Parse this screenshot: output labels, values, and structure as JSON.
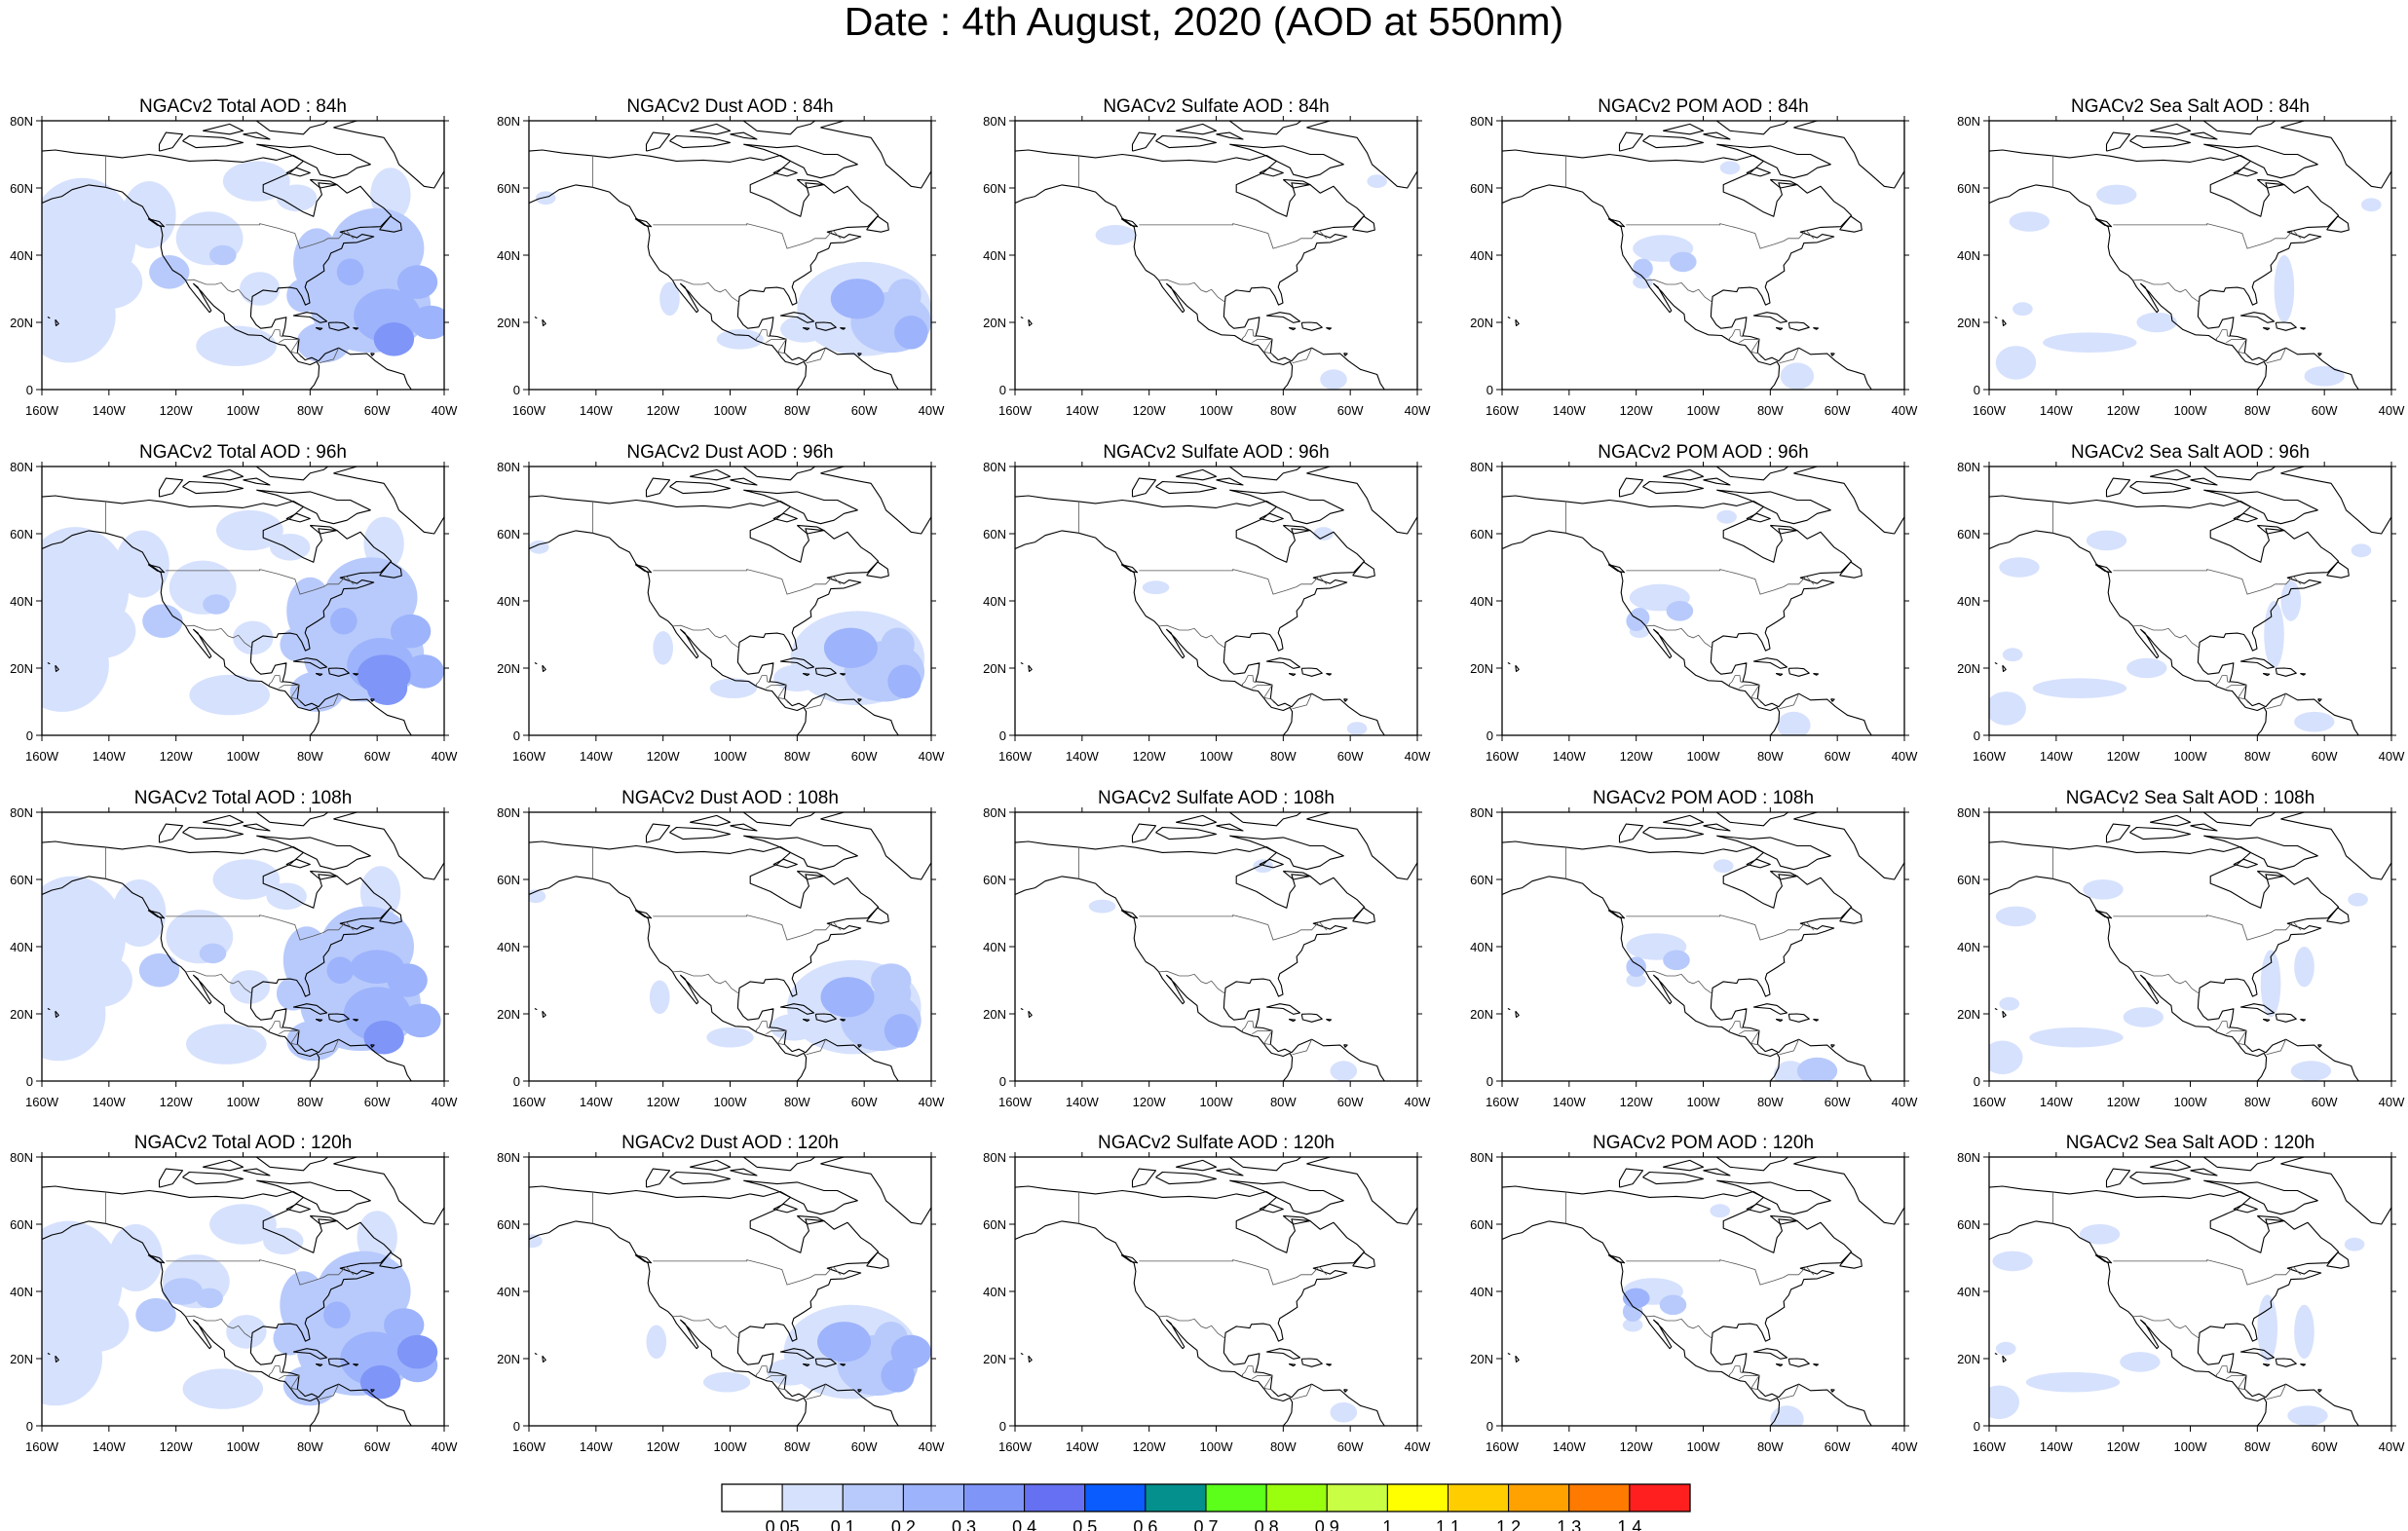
{
  "title": "Date : 4th August, 2020 (AOD at 550nm)",
  "panel_titles": [
    [
      "NGACv2 Total AOD : 84h",
      "NGACv2 Dust AOD : 84h",
      "NGACv2 Sulfate AOD : 84h",
      "NGACv2 POM AOD : 84h",
      "NGACv2 Sea Salt AOD : 84h"
    ],
    [
      "NGACv2 Total AOD : 96h",
      "NGACv2 Dust AOD : 96h",
      "NGACv2 Sulfate AOD : 96h",
      "NGACv2 POM AOD : 96h",
      "NGACv2 Sea Salt AOD : 96h"
    ],
    [
      "NGACv2 Total AOD : 108h",
      "NGACv2 Dust AOD : 108h",
      "NGACv2 Sulfate AOD : 108h",
      "NGACv2 POM AOD : 108h",
      "NGACv2 Sea Salt AOD : 108h"
    ],
    [
      "NGACv2 Total AOD : 120h",
      "NGACv2 Dust AOD : 120h",
      "NGACv2 Sulfate AOD : 120h",
      "NGACv2 POM AOD : 120h",
      "NGACv2 Sea Salt  AOD : 120h"
    ]
  ],
  "axes": {
    "lon_ticks": [
      "160W",
      "140W",
      "120W",
      "100W",
      "80W",
      "60W",
      "40W"
    ],
    "lat_ticks": [
      "80N",
      "60N",
      "40N",
      "20N",
      "0"
    ],
    "lon_range": [
      -160,
      -40
    ],
    "lat_range": [
      0,
      80
    ]
  },
  "colorbar": {
    "labels": [
      "0.05",
      "0.1",
      "0.2",
      "0.3",
      "0.4",
      "0.5",
      "0.6",
      "0.7",
      "0.8",
      "0.9",
      "1",
      "1.1",
      "1.2",
      "1.3",
      "1.4"
    ],
    "colors": [
      "#ffffff",
      "#d6e1fd",
      "#b8cafc",
      "#9db3fb",
      "#7f95f8",
      "#6570f2",
      "#0a5cff",
      "#04908d",
      "#5bff1a",
      "#9aff0f",
      "#c8ff45",
      "#ffff00",
      "#ffcd00",
      "#ffa200",
      "#ff7a00",
      "#ff1f1f"
    ]
  }
}
